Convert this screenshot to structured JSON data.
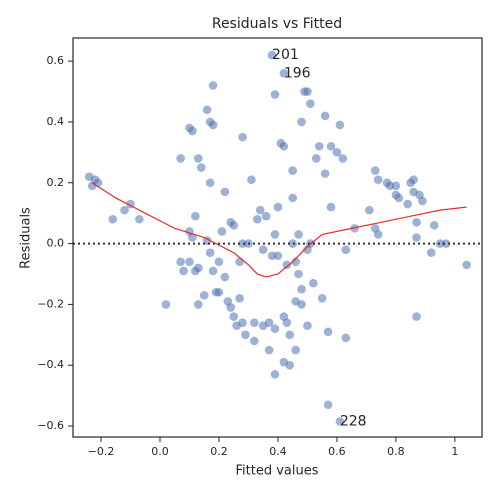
{
  "chart_data": {
    "type": "scatter",
    "title": "Residuals vs Fitted",
    "xlabel": "Fitted values",
    "ylabel": "Residuals",
    "color": "#4c72b0",
    "x": [
      -0.24,
      -0.23,
      -0.22,
      -0.21,
      -0.16,
      -0.12,
      -0.1,
      -0.07,
      0.02,
      0.07,
      0.08,
      0.07,
      0.1,
      0.11,
      0.1,
      0.11,
      0.1,
      0.12,
      0.13,
      0.14,
      0.12,
      0.13,
      0.13,
      0.15,
      0.16,
      0.17,
      0.18,
      0.17,
      0.18,
      0.16,
      0.17,
      0.18,
      0.19,
      0.2,
      0.2,
      0.21,
      0.22,
      0.22,
      0.23,
      0.24,
      0.24,
      0.25,
      0.25,
      0.26,
      0.27,
      0.27,
      0.28,
      0.28,
      0.28,
      0.29,
      0.3,
      0.31,
      0.32,
      0.32,
      0.33,
      0.34,
      0.35,
      0.35,
      0.36,
      0.37,
      0.37,
      0.38,
      0.39,
      0.38,
      0.39,
      0.39,
      0.39,
      0.4,
      0.4,
      0.41,
      0.42,
      0.42,
      0.42,
      0.42,
      0.43,
      0.43,
      0.44,
      0.44,
      0.45,
      0.45,
      0.45,
      0.46,
      0.46,
      0.46,
      0.47,
      0.47,
      0.48,
      0.48,
      0.48,
      0.49,
      0.5,
      0.5,
      0.5,
      0.51,
      0.51,
      0.52,
      0.53,
      0.54,
      0.55,
      0.56,
      0.56,
      0.57,
      0.57,
      0.58,
      0.58,
      0.6,
      0.61,
      0.61,
      0.62,
      0.63,
      0.63,
      0.66,
      0.71,
      0.73,
      0.74,
      0.73,
      0.74,
      0.77,
      0.78,
      0.8,
      0.8,
      0.81,
      0.84,
      0.85,
      0.86,
      0.86,
      0.87,
      0.87,
      0.87,
      0.88,
      0.89,
      0.92,
      0.93,
      0.95,
      0.97,
      1.04
    ],
    "values": [
      0.22,
      0.19,
      0.21,
      0.2,
      0.08,
      0.11,
      0.13,
      0.08,
      -0.2,
      -0.06,
      -0.09,
      0.28,
      0.38,
      0.37,
      0.04,
      0.02,
      -0.06,
      0.09,
      0.28,
      0.25,
      -0.09,
      -0.08,
      -0.2,
      -0.17,
      0.44,
      0.4,
      0.39,
      0.2,
      0.52,
      0.01,
      -0.03,
      -0.09,
      -0.16,
      -0.16,
      -0.06,
      0.04,
      -0.11,
      0.17,
      -0.19,
      -0.21,
      0.07,
      0.06,
      -0.24,
      -0.27,
      -0.06,
      -0.18,
      0.35,
      0.0,
      -0.26,
      -0.3,
      0.0,
      0.21,
      -0.26,
      -0.32,
      0.08,
      0.11,
      -0.27,
      -0.02,
      0.09,
      -0.26,
      -0.35,
      0.62,
      0.49,
      -0.04,
      -0.43,
      0.03,
      -0.28,
      0.12,
      -0.04,
      0.33,
      0.56,
      0.32,
      -0.24,
      -0.39,
      -0.26,
      -0.07,
      -0.4,
      -0.3,
      0.24,
      0.15,
      0.0,
      -0.19,
      -0.35,
      -0.06,
      0.03,
      -0.1,
      0.4,
      -0.15,
      -0.2,
      0.5,
      0.5,
      -0.02,
      -0.27,
      0.46,
      0.0,
      -0.13,
      0.28,
      0.32,
      -0.18,
      0.42,
      0.23,
      -0.29,
      -0.53,
      0.12,
      0.32,
      0.3,
      0.39,
      -0.585,
      0.28,
      -0.31,
      -0.02,
      0.05,
      0.11,
      0.05,
      0.03,
      0.24,
      0.21,
      0.2,
      0.19,
      0.19,
      0.16,
      0.15,
      0.13,
      0.2,
      0.21,
      0.17,
      0.07,
      0.02,
      -0.24,
      0.16,
      0.14,
      -0.03,
      0.06,
      0.0,
      0.0,
      -0.07
    ],
    "lowess": {
      "color": "#e8282b",
      "x": [
        -0.23,
        -0.15,
        -0.05,
        0.05,
        0.15,
        0.25,
        0.3,
        0.33,
        0.36,
        0.4,
        0.45,
        0.5,
        0.55,
        0.65,
        0.75,
        0.85,
        0.95,
        1.04
      ],
      "values": [
        0.2,
        0.15,
        0.1,
        0.05,
        0.02,
        -0.03,
        -0.07,
        -0.1,
        -0.11,
        -0.1,
        -0.06,
        -0.01,
        0.03,
        0.05,
        0.07,
        0.09,
        0.11,
        0.12
      ]
    },
    "hline": 0,
    "annotations": [
      {
        "text": "201",
        "x": 0.38,
        "y": 0.62
      },
      {
        "text": "196",
        "x": 0.42,
        "y": 0.56
      },
      {
        "text": "228",
        "x": 0.61,
        "y": -0.585
      }
    ],
    "xlim": [
      -0.295,
      1.092
    ],
    "ylim": [
      -0.636,
      0.676
    ],
    "xticks": [
      {
        "value": -0.2,
        "label": "−0.2"
      },
      {
        "value": 0,
        "label": "0.0"
      },
      0.2,
      0.4,
      0.6,
      0.8,
      1.0
    ],
    "yticks": [
      {
        "value": -0.6,
        "label": "−0.6"
      },
      {
        "value": -0.4,
        "label": "−0.4"
      },
      {
        "value": -0.2,
        "label": "−0.2"
      },
      {
        "value": 0,
        "label": "0.0"
      },
      0.2,
      0.4,
      0.6
    ]
  }
}
